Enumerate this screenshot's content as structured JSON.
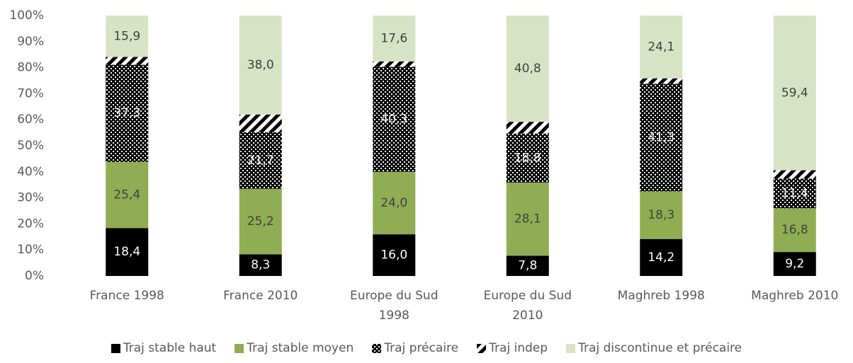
{
  "chart_data": {
    "type": "stacked_bar",
    "categories": [
      "France 1998",
      "France 2010",
      "Europe du Sud 1998",
      "Europe du Sud 2010",
      "Maghreb 1998",
      "Maghreb 2010"
    ],
    "series": [
      {
        "name": "Traj stable haut",
        "color": "#000000",
        "values": [
          18.4,
          8.3,
          16.0,
          7.8,
          14.2,
          9.2
        ],
        "value_labels": [
          "18,4",
          "8,3",
          "16,0",
          "7,8",
          "14,2",
          "9,2"
        ]
      },
      {
        "name": "Traj stable moyen",
        "color": "#8fad52",
        "values": [
          25.4,
          25.2,
          24.0,
          28.1,
          18.3,
          16.8
        ],
        "value_labels": [
          "25,4",
          "25,2",
          "24,0",
          "28,1",
          "18,3",
          "16,8"
        ]
      },
      {
        "name": "Traj précaire",
        "color": "#000000",
        "pattern": "dots",
        "values": [
          37.3,
          21.7,
          40.3,
          18.8,
          41.3,
          11.4
        ],
        "value_labels": [
          "37,3",
          "21,7",
          "40,3",
          "18,8",
          "41,3",
          "11,4"
        ]
      },
      {
        "name": "Traj indep",
        "color": "#000000",
        "pattern": "stripes",
        "values": [
          3.0,
          6.8,
          2.1,
          4.5,
          2.1,
          3.2
        ]
      },
      {
        "name": "Traj discontinue et précaire",
        "color": "#d7e3c5",
        "values": [
          15.9,
          38.0,
          17.6,
          40.8,
          24.1,
          59.4
        ],
        "value_labels": [
          "15,9",
          "38,0",
          "17,6",
          "40,8",
          "24,1",
          "59,4"
        ]
      }
    ],
    "ylim": [
      0,
      100
    ],
    "yticks": [
      {
        "value": 0,
        "label": "0%"
      },
      {
        "value": 10,
        "label": "10%"
      },
      {
        "value": 20,
        "label": "20%"
      },
      {
        "value": 30,
        "label": "30%"
      },
      {
        "value": 40,
        "label": "40%"
      },
      {
        "value": 50,
        "label": "50%"
      },
      {
        "value": 60,
        "label": "60%"
      },
      {
        "value": 70,
        "label": "70%"
      },
      {
        "value": 80,
        "label": "80%"
      },
      {
        "value": 90,
        "label": "90%"
      },
      {
        "value": 100,
        "label": "100%"
      }
    ],
    "grid": false
  }
}
